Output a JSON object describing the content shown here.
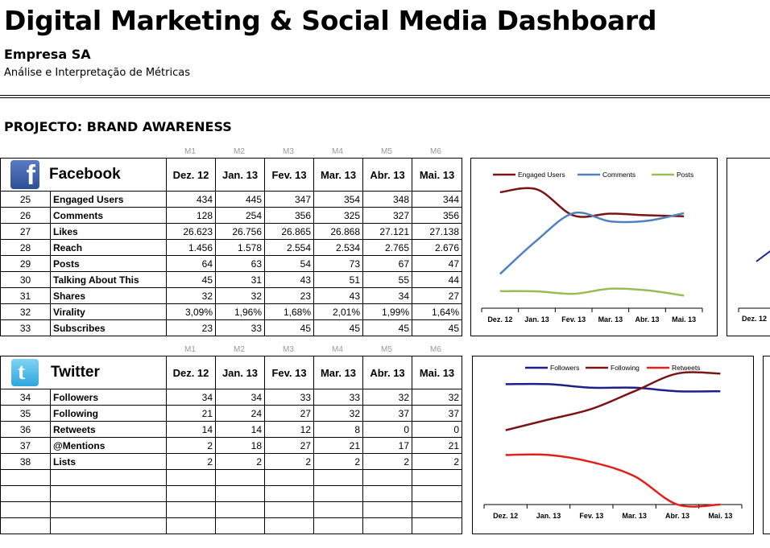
{
  "header": {
    "title": "Digital Marketing & Social Media Dashboard",
    "company": "Empresa SA",
    "subtitle": "Análise e Interpretação de Métricas",
    "project": "PROJECTO: BRAND AWARENESS"
  },
  "month_codes": [
    "M1",
    "M2",
    "M3",
    "M4",
    "M5",
    "M6"
  ],
  "months": [
    "Dez. 12",
    "Jan. 13",
    "Fev. 13",
    "Mar. 13",
    "Abr. 13",
    "Mai. 13"
  ],
  "facebook": {
    "name": "Facebook",
    "logo_icon": "facebook-logo-icon",
    "rows": [
      {
        "num": "25",
        "metric": "Engaged Users",
        "values": [
          "434",
          "445",
          "347",
          "354",
          "348",
          "344"
        ]
      },
      {
        "num": "26",
        "metric": "Comments",
        "values": [
          "128",
          "254",
          "356",
          "325",
          "327",
          "356"
        ]
      },
      {
        "num": "27",
        "metric": "Likes",
        "values": [
          "26.623",
          "26.756",
          "26.865",
          "26.868",
          "27.121",
          "27.138"
        ]
      },
      {
        "num": "28",
        "metric": "Reach",
        "values": [
          "1.456",
          "1.578",
          "2.554",
          "2.534",
          "2.765",
          "2.676"
        ]
      },
      {
        "num": "29",
        "metric": "Posts",
        "values": [
          "64",
          "63",
          "54",
          "73",
          "67",
          "47"
        ]
      },
      {
        "num": "30",
        "metric": "Talking About This",
        "values": [
          "45",
          "31",
          "43",
          "51",
          "55",
          "44"
        ]
      },
      {
        "num": "31",
        "metric": "Shares",
        "values": [
          "32",
          "32",
          "23",
          "43",
          "34",
          "27"
        ]
      },
      {
        "num": "32",
        "metric": "Virality",
        "values": [
          "3,09%",
          "1,96%",
          "1,68%",
          "2,01%",
          "1,99%",
          "1,64%"
        ]
      },
      {
        "num": "33",
        "metric": "Subscribes",
        "values": [
          "23",
          "33",
          "45",
          "45",
          "45",
          "45"
        ]
      }
    ]
  },
  "twitter": {
    "name": "Twitter",
    "logo_icon": "twitter-logo-icon",
    "rows": [
      {
        "num": "34",
        "metric": "Followers",
        "values": [
          "34",
          "34",
          "33",
          "33",
          "32",
          "32"
        ]
      },
      {
        "num": "35",
        "metric": "Following",
        "values": [
          "21",
          "24",
          "27",
          "32",
          "37",
          "37"
        ]
      },
      {
        "num": "36",
        "metric": "Retweets",
        "values": [
          "14",
          "14",
          "12",
          "8",
          "0",
          "0"
        ]
      },
      {
        "num": "37",
        "metric": "@Mentions",
        "values": [
          "2",
          "18",
          "27",
          "21",
          "17",
          "21"
        ]
      },
      {
        "num": "38",
        "metric": "Lists",
        "values": [
          "2",
          "2",
          "2",
          "2",
          "2",
          "2"
        ]
      }
    ],
    "empty_rows": 4
  },
  "colors": {
    "engaged": "#7b1416",
    "comments": "#4f81bd",
    "posts": "#9bbb59",
    "followers": "#1f1f8c",
    "following": "#7b1416",
    "retweets": "#e0201b"
  },
  "chart_data": [
    {
      "type": "line",
      "categories": [
        "Dez. 12",
        "Jan. 13",
        "Fev. 13",
        "Mar. 13",
        "Abr. 13",
        "Mai. 13"
      ],
      "series": [
        {
          "name": "Engaged Users",
          "values": [
            434,
            445,
            347,
            354,
            348,
            344
          ]
        },
        {
          "name": "Comments",
          "values": [
            128,
            254,
            356,
            325,
            327,
            356
          ]
        },
        {
          "name": "Posts",
          "values": [
            64,
            63,
            54,
            73,
            67,
            47
          ]
        }
      ],
      "ylim": [
        0,
        500
      ],
      "grid": false,
      "legend": "top"
    },
    {
      "type": "line",
      "categories": [
        "Dez. 12",
        "Jan. 13",
        "Fev. 13",
        "Mar. 13",
        "Abr. 13",
        "Mai. 13"
      ],
      "series": [
        {
          "name": "Followers",
          "values": [
            34,
            34,
            33,
            33,
            32,
            32
          ]
        },
        {
          "name": "Following",
          "values": [
            21,
            24,
            27,
            32,
            37,
            37
          ]
        },
        {
          "name": "Retweets",
          "values": [
            14,
            14,
            12,
            8,
            0,
            0
          ]
        }
      ],
      "ylim": [
        0,
        40
      ],
      "grid": false,
      "legend": "top"
    },
    {
      "type": "line",
      "categories": [
        "Dez. 12"
      ],
      "series": [],
      "note_visible_partial": true
    }
  ]
}
